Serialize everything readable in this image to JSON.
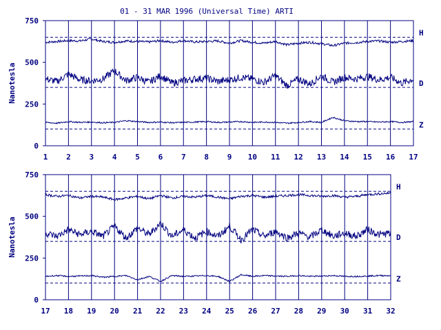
{
  "title": "01 - 31 MAR 1996 (Universal Time) ARTI",
  "colors": {
    "ink": "#000080",
    "background": "#ffffff"
  },
  "chart_data": [
    {
      "type": "line",
      "title": "01 - 31 MAR 1996 (Universal Time) ARTI",
      "ylabel": "Nanotesla",
      "xlabel": "",
      "xlim": [
        1,
        17
      ],
      "ylim": [
        0,
        750
      ],
      "xticks": [
        "1",
        "2",
        "3",
        "4",
        "5",
        "6",
        "7",
        "8",
        "9",
        "10",
        "11",
        "12",
        "13",
        "14",
        "15",
        "16",
        "17"
      ],
      "yticks": [
        "0",
        "250",
        "500",
        "750"
      ],
      "grid": "vertical lines at each day",
      "reference_lines": [
        {
          "label": "H",
          "value": 650
        },
        {
          "label": "D",
          "value": 350
        },
        {
          "label": "Z",
          "value": 100
        }
      ],
      "series": [
        {
          "name": "H",
          "x": [
            1,
            1.5,
            2,
            2.5,
            3,
            3.5,
            4,
            4.5,
            5,
            5.5,
            6,
            6.5,
            7,
            7.5,
            8,
            8.5,
            9,
            9.5,
            10,
            10.5,
            11,
            11.5,
            12,
            12.5,
            13,
            13.5,
            14,
            14.5,
            15,
            15.5,
            16,
            16.5,
            17
          ],
          "values": [
            620,
            625,
            630,
            628,
            640,
            625,
            620,
            628,
            625,
            622,
            630,
            620,
            630,
            622,
            625,
            628,
            615,
            630,
            620,
            615,
            625,
            605,
            615,
            620,
            612,
            600,
            615,
            618,
            625,
            628,
            620,
            625,
            630
          ]
        },
        {
          "name": "D",
          "x": [
            1,
            1.5,
            2,
            2.5,
            3,
            3.5,
            4,
            4.5,
            5,
            5.5,
            6,
            6.5,
            7,
            7.5,
            8,
            8.5,
            9,
            9.5,
            10,
            10.5,
            11,
            11.5,
            12,
            12.5,
            13,
            13.5,
            14,
            14.5,
            15,
            15.5,
            16,
            16.5,
            17
          ],
          "values": [
            400,
            385,
            430,
            395,
            390,
            400,
            450,
            390,
            410,
            380,
            420,
            375,
            390,
            400,
            405,
            385,
            395,
            410,
            400,
            380,
            420,
            360,
            400,
            370,
            420,
            380,
            410,
            400,
            415,
            395,
            410,
            375,
            400
          ]
        },
        {
          "name": "Z",
          "x": [
            1,
            1.5,
            2,
            2.5,
            3,
            3.5,
            4,
            4.5,
            5,
            5.5,
            6,
            6.5,
            7,
            7.5,
            8,
            8.5,
            9,
            9.5,
            10,
            10.5,
            11,
            11.5,
            12,
            12.5,
            13,
            13.5,
            14,
            14.5,
            15,
            15.5,
            16,
            16.5,
            17
          ],
          "values": [
            140,
            135,
            145,
            140,
            142,
            138,
            140,
            150,
            145,
            140,
            142,
            138,
            140,
            142,
            145,
            140,
            142,
            145,
            140,
            142,
            140,
            135,
            140,
            145,
            140,
            170,
            150,
            145,
            145,
            142,
            145,
            140,
            145
          ]
        }
      ]
    },
    {
      "type": "line",
      "title": "",
      "ylabel": "Nanotesla",
      "xlabel": "",
      "xlim": [
        17,
        32
      ],
      "ylim": [
        0,
        750
      ],
      "xticks": [
        "17",
        "18",
        "19",
        "20",
        "21",
        "22",
        "23",
        "24",
        "25",
        "26",
        "27",
        "28",
        "29",
        "30",
        "31",
        "32"
      ],
      "yticks": [
        "0",
        "250",
        "500",
        "750"
      ],
      "grid": "vertical lines at each day",
      "reference_lines": [
        {
          "label": "H",
          "value": 650
        },
        {
          "label": "D",
          "value": 350
        },
        {
          "label": "Z",
          "value": 100
        }
      ],
      "series": [
        {
          "name": "H",
          "x": [
            17,
            17.5,
            18,
            18.5,
            19,
            19.5,
            20,
            20.5,
            21,
            21.5,
            22,
            22.5,
            23,
            23.5,
            24,
            24.5,
            25,
            25.5,
            26,
            26.5,
            27,
            27.5,
            28,
            28.5,
            29,
            29.5,
            30,
            30.5,
            31,
            31.5,
            32
          ],
          "values": [
            630,
            620,
            625,
            610,
            620,
            615,
            600,
            610,
            620,
            605,
            625,
            610,
            620,
            615,
            625,
            615,
            605,
            620,
            625,
            615,
            620,
            625,
            630,
            625,
            620,
            625,
            615,
            620,
            630,
            635,
            640
          ]
        },
        {
          "name": "D",
          "x": [
            17,
            17.5,
            18,
            18.5,
            19,
            19.5,
            20,
            20.5,
            21,
            21.5,
            22,
            22.5,
            23,
            23.5,
            24,
            24.5,
            25,
            25.5,
            26,
            26.5,
            27,
            27.5,
            28,
            28.5,
            29,
            29.5,
            30,
            30.5,
            31,
            31.5,
            32
          ],
          "values": [
            400,
            380,
            420,
            390,
            410,
            380,
            440,
            370,
            430,
            390,
            460,
            380,
            420,
            370,
            410,
            380,
            440,
            360,
            420,
            380,
            410,
            370,
            400,
            375,
            420,
            380,
            400,
            380,
            420,
            390,
            400
          ]
        },
        {
          "name": "Z",
          "x": [
            17,
            17.5,
            18,
            18.5,
            19,
            19.5,
            20,
            20.5,
            21,
            21.5,
            22,
            22.5,
            23,
            23.5,
            24,
            24.5,
            25,
            25.5,
            26,
            26.5,
            27,
            27.5,
            28,
            28.5,
            29,
            29.5,
            30,
            30.5,
            31,
            31.5,
            32
          ],
          "values": [
            140,
            145,
            140,
            142,
            145,
            135,
            140,
            145,
            120,
            140,
            110,
            145,
            140,
            142,
            145,
            140,
            110,
            150,
            140,
            145,
            142,
            140,
            145,
            140,
            142,
            145,
            140,
            140,
            142,
            145,
            145
          ]
        }
      ]
    }
  ]
}
